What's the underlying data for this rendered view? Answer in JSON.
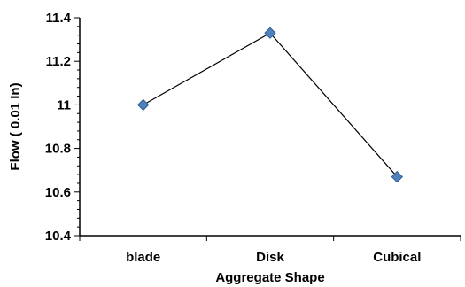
{
  "chart_data": {
    "type": "line",
    "categories": [
      "blade",
      "Disk",
      "Cubical"
    ],
    "series": [
      {
        "values": [
          11.0,
          11.33,
          10.67
        ]
      }
    ],
    "xlabel": "Aggregate Shape",
    "ylabel": "Flow ( 0.01 In)",
    "ylim": [
      10.4,
      11.4
    ],
    "yticks": [
      "10.4",
      "10.6",
      "10.8",
      "11",
      "11.2",
      "11.4"
    ],
    "grid": false,
    "legend": "none",
    "colors": {
      "line": "#000000",
      "marker": "#4f81bd",
      "marker_edge": "#2f5f94"
    }
  }
}
